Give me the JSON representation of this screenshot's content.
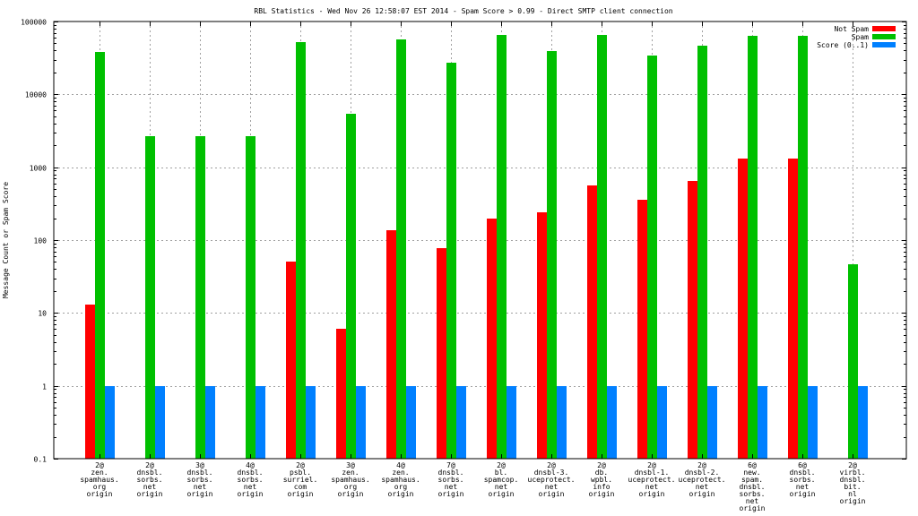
{
  "chart_data": {
    "type": "bar",
    "title": "RBL Statistics - Wed Nov 26 12:58:07 EST 2014 - Spam Score > 0.99 - Direct SMTP client connection",
    "ylabel": "Message Count or Spam Score",
    "xlabel": "",
    "yscale": "log",
    "ylim": [
      0.1,
      100000
    ],
    "yticks": [
      {
        "value": 0.1,
        "label": "0.1"
      },
      {
        "value": 1,
        "label": "1"
      },
      {
        "value": 10,
        "label": "10"
      },
      {
        "value": 100,
        "label": "100"
      },
      {
        "value": 1000,
        "label": "1000"
      },
      {
        "value": 10000,
        "label": "10000"
      },
      {
        "value": 100000,
        "label": "100000"
      }
    ],
    "grid": true,
    "legend_position": "top-right",
    "categories": [
      [
        "2@",
        "zen.",
        "spamhaus.",
        "org",
        "origin"
      ],
      [
        "2@",
        "dnsbl.",
        "sorbs.",
        "net",
        "origin"
      ],
      [
        "3@",
        "dnsbl.",
        "sorbs.",
        "net",
        "origin"
      ],
      [
        "4@",
        "dnsbl.",
        "sorbs.",
        "net",
        "origin"
      ],
      [
        "2@",
        "psbl.",
        "surriel.",
        "com",
        "origin"
      ],
      [
        "3@",
        "zen.",
        "spamhaus.",
        "org",
        "origin"
      ],
      [
        "4@",
        "zen.",
        "spamhaus.",
        "org",
        "origin"
      ],
      [
        "7@",
        "dnsbl.",
        "sorbs.",
        "net",
        "origin"
      ],
      [
        "2@",
        "bl.",
        "spamcop.",
        "net",
        "origin"
      ],
      [
        "2@",
        "dnsbl-3.",
        "uceprotect.",
        "net",
        "origin"
      ],
      [
        "2@",
        "db.",
        "wpbl.",
        "info",
        "origin"
      ],
      [
        "2@",
        "dnsbl-1.",
        "uceprotect.",
        "net",
        "origin"
      ],
      [
        "2@",
        "dnsbl-2.",
        "uceprotect.",
        "net",
        "origin"
      ],
      [
        "6@",
        "new.",
        "spam.",
        "dnsbl.",
        "sorbs.",
        "net",
        "origin"
      ],
      [
        "6@",
        "dnsbl.",
        "sorbs.",
        "net",
        "origin"
      ],
      [
        "2@",
        "virbl.",
        "dnsbl.",
        "bit.",
        "nl",
        "origin"
      ]
    ],
    "series": [
      {
        "name": "Not Spam",
        "color": "#ff0000",
        "values": [
          13,
          null,
          null,
          null,
          50,
          6,
          135,
          77,
          200,
          240,
          560,
          360,
          650,
          1300,
          1300,
          null
        ]
      },
      {
        "name": "Spam",
        "color": "#00c000",
        "values": [
          38000,
          2700,
          2700,
          2700,
          52000,
          5400,
          56000,
          27000,
          65000,
          39000,
          65000,
          34000,
          47000,
          63000,
          63000,
          46
        ]
      },
      {
        "name": "Score (0..1)",
        "color": "#0080ff",
        "values": [
          1,
          1,
          1,
          1,
          1,
          1,
          1,
          1,
          1,
          1,
          1,
          1,
          1,
          1,
          1,
          1
        ]
      }
    ]
  }
}
